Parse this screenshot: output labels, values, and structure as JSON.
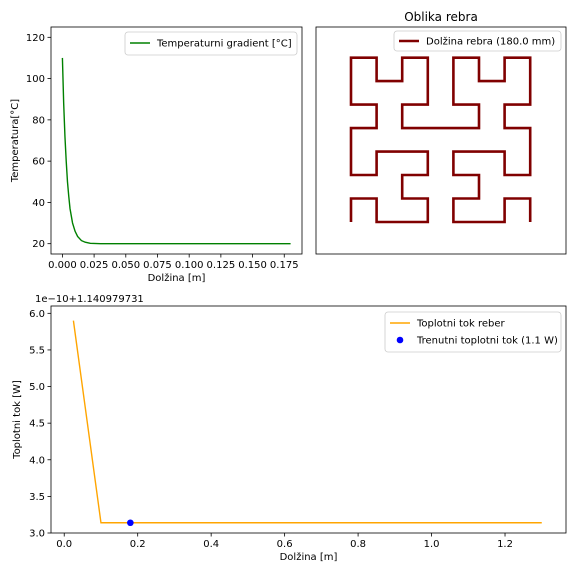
{
  "chart_data": [
    {
      "type": "line",
      "xlabel": "Dolžina [m]",
      "ylabel": "Temperatura[°C]",
      "xlim": [
        -0.009,
        0.189
      ],
      "ylim": [
        15,
        125
      ],
      "xticks": [
        0.0,
        0.025,
        0.05,
        0.075,
        0.1,
        0.125,
        0.15,
        0.175
      ],
      "xtick_labels": [
        "0.000",
        "0.025",
        "0.050",
        "0.075",
        "0.100",
        "0.125",
        "0.150",
        "0.175"
      ],
      "yticks": [
        20,
        40,
        60,
        80,
        100,
        120
      ],
      "ytick_labels": [
        "20",
        "40",
        "60",
        "80",
        "100",
        "120"
      ],
      "legend_position": "top-right",
      "series": [
        {
          "name": "Temperaturni gradient [°C]",
          "color": "#008000",
          "x": [
            0.0,
            0.001,
            0.002,
            0.003,
            0.004,
            0.005,
            0.006,
            0.008,
            0.01,
            0.012,
            0.015,
            0.018,
            0.022,
            0.03,
            0.05,
            0.1,
            0.18
          ],
          "y": [
            110,
            88,
            72,
            60,
            50,
            43,
            37,
            30,
            26,
            23.5,
            21.5,
            20.7,
            20.2,
            20.0,
            20.0,
            20.0,
            20.0
          ]
        }
      ]
    },
    {
      "type": "line",
      "title": "Oblika rebra",
      "legend_position": "top-right",
      "axes_visible": false,
      "series": [
        {
          "name": "Dolžina rebra (180.0 mm)",
          "color": "#800000",
          "description_type": "hilbert-curve-path"
        }
      ]
    },
    {
      "type": "line",
      "xlabel": "Dolžina [m]",
      "ylabel": "Toplotni tok [W]",
      "offset_text": "1e−10+1.140979731",
      "xlim": [
        -0.036,
        1.366
      ],
      "ylim": [
        3.0,
        6.1
      ],
      "xticks": [
        0.0,
        0.2,
        0.4,
        0.6,
        0.8,
        1.0,
        1.2
      ],
      "xtick_labels": [
        "0.0",
        "0.2",
        "0.4",
        "0.6",
        "0.8",
        "1.0",
        "1.2"
      ],
      "yticks": [
        3.0,
        3.5,
        4.0,
        4.5,
        5.0,
        5.5,
        6.0
      ],
      "ytick_labels": [
        "3.0",
        "3.5",
        "4.0",
        "4.5",
        "5.0",
        "5.5",
        "6.0"
      ],
      "legend_position": "top-right",
      "series": [
        {
          "name": "Toplotni tok reber",
          "color": "#FFA500",
          "x": [
            0.025,
            0.1,
            0.18,
            0.5,
            1.0,
            1.3
          ],
          "y": [
            5.9,
            3.14,
            3.14,
            3.14,
            3.14,
            3.14
          ]
        },
        {
          "name": "Trenutni toplotni tok (1.1 W)",
          "color": "#0000FF",
          "marker": "circle",
          "x": [
            0.18
          ],
          "y": [
            3.14
          ]
        }
      ]
    }
  ]
}
